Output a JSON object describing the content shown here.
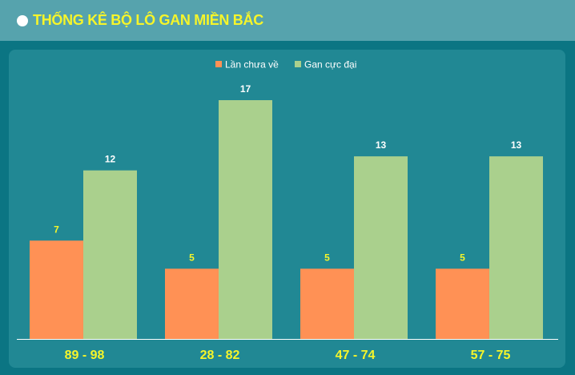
{
  "header": {
    "title": "THỐNG KÊ BỘ LÔ GAN MIỀN BẮC"
  },
  "colors": {
    "background": "#0b7583",
    "header_bg": "#56a3ad",
    "panel_bg": "#218894",
    "title_color": "#f6f52a",
    "series_1": "#ff9155",
    "series_2": "#aad08d",
    "label_yellow": "#f6f52a",
    "label_white": "#ffffff"
  },
  "chart_data": {
    "type": "bar",
    "title": "",
    "xlabel": "",
    "ylabel": "",
    "ylim": [
      0,
      17
    ],
    "grid": false,
    "legend_position": "top-center",
    "categories": [
      "89 - 98",
      "28 - 82",
      "47 - 74",
      "57 - 75"
    ],
    "series": [
      {
        "name": "Lần chưa về",
        "values": [
          7,
          5,
          5,
          5
        ]
      },
      {
        "name": "Gan cực đại",
        "values": [
          12,
          17,
          13,
          13
        ]
      }
    ]
  }
}
